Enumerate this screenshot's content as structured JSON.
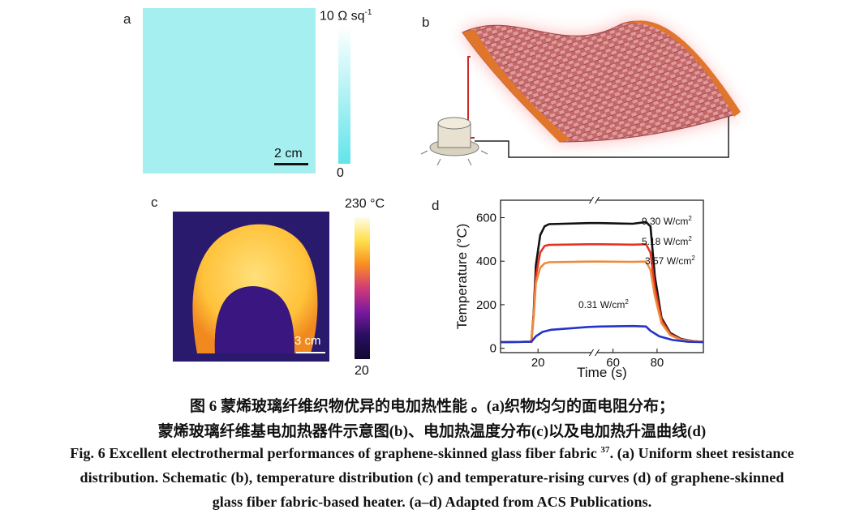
{
  "panel_a": {
    "label": "a",
    "colorbar_max": "10 Ω sq",
    "colorbar_max_sup": "-1",
    "colorbar_min": "0",
    "scalebar": "2 cm",
    "colors": {
      "fabric": "#a6eff0",
      "bar_top": "#ffffff",
      "bar_bottom": "#62e4ea"
    }
  },
  "panel_b": {
    "label": "b",
    "colors": {
      "fabric": "#c4686a",
      "electrode": "#e0752c",
      "glow": "#ff5a5a",
      "wire": "#222222"
    }
  },
  "panel_c": {
    "label": "c",
    "colorbar_max": "230 °C",
    "colorbar_min": "20",
    "scalebar": "3 cm",
    "colors": {
      "background": "#2a1a6e",
      "hot": "#ffd24a"
    }
  },
  "panel_d": {
    "label": "d"
  },
  "chart_data": {
    "type": "line",
    "xlabel": "Time (s)",
    "ylabel": "Temperature (°C)",
    "ylim": [
      -20,
      680
    ],
    "y_ticks": [
      0,
      200,
      400,
      600
    ],
    "x_ticks": [
      20,
      60,
      80
    ],
    "x_break": true,
    "series": [
      {
        "name": "9.30 W/cm",
        "name_sup": "2",
        "color": "#111111",
        "points": [
          [
            0,
            28
          ],
          [
            14,
            30
          ],
          [
            15,
            160
          ],
          [
            16,
            380
          ],
          [
            18,
            520
          ],
          [
            20,
            560
          ],
          [
            22,
            570
          ],
          [
            40,
            575
          ],
          [
            45,
            575
          ],
          [
            60,
            572
          ],
          [
            66,
            580
          ],
          [
            68,
            560
          ],
          [
            70,
            330
          ],
          [
            73,
            140
          ],
          [
            77,
            70
          ],
          [
            82,
            42
          ],
          [
            88,
            32
          ],
          [
            92,
            30
          ]
        ]
      },
      {
        "name": "5.18 W/cm",
        "name_sup": "2",
        "color": "#e53322",
        "points": [
          [
            0,
            28
          ],
          [
            14,
            30
          ],
          [
            15,
            150
          ],
          [
            16,
            330
          ],
          [
            18,
            440
          ],
          [
            20,
            470
          ],
          [
            22,
            475
          ],
          [
            40,
            478
          ],
          [
            45,
            478
          ],
          [
            60,
            476
          ],
          [
            66,
            478
          ],
          [
            68,
            440
          ],
          [
            70,
            280
          ],
          [
            73,
            130
          ],
          [
            77,
            65
          ],
          [
            82,
            40
          ],
          [
            88,
            32
          ],
          [
            92,
            30
          ]
        ]
      },
      {
        "name": "3.57 W/cm",
        "name_sup": "2",
        "color": "#ef8a3c",
        "points": [
          [
            0,
            28
          ],
          [
            14,
            30
          ],
          [
            15,
            140
          ],
          [
            16,
            300
          ],
          [
            18,
            370
          ],
          [
            20,
            390
          ],
          [
            22,
            395
          ],
          [
            40,
            398
          ],
          [
            45,
            398
          ],
          [
            60,
            397
          ],
          [
            66,
            398
          ],
          [
            68,
            360
          ],
          [
            70,
            240
          ],
          [
            73,
            115
          ],
          [
            77,
            60
          ],
          [
            82,
            38
          ],
          [
            88,
            32
          ],
          [
            92,
            30
          ]
        ]
      },
      {
        "name": "0.31 W/cm",
        "name_sup": "2",
        "color": "#2434c8",
        "points": [
          [
            0,
            28
          ],
          [
            14,
            30
          ],
          [
            16,
            55
          ],
          [
            19,
            75
          ],
          [
            23,
            85
          ],
          [
            40,
            98
          ],
          [
            45,
            100
          ],
          [
            60,
            102
          ],
          [
            66,
            100
          ],
          [
            68,
            80
          ],
          [
            72,
            55
          ],
          [
            78,
            38
          ],
          [
            85,
            30
          ],
          [
            92,
            28
          ]
        ]
      }
    ]
  },
  "caption": {
    "zh_line1": "图 6    蒙烯玻璃纤维织物优异的电加热性能    。(a)织物均匀的面电阻分布；",
    "zh_line2": "蒙烯玻璃纤维基电加热器件示意图(b)、电加热温度分布(c)以及电加热升温曲线(d)",
    "en_line1_a": "Fig. 6    Excellent electrothermal performances of graphene-skinned glass fiber fabric ",
    "en_ref": "37",
    "en_line1_b": ". (a) Uniform sheet resistance",
    "en_line2": "distribution. Schematic (b), temperature distribution (c) and temperature-rising curves (d) of graphene-skinned",
    "en_line3": "glass fiber fabric-based heater. (a–d) Adapted from ACS Publications."
  }
}
